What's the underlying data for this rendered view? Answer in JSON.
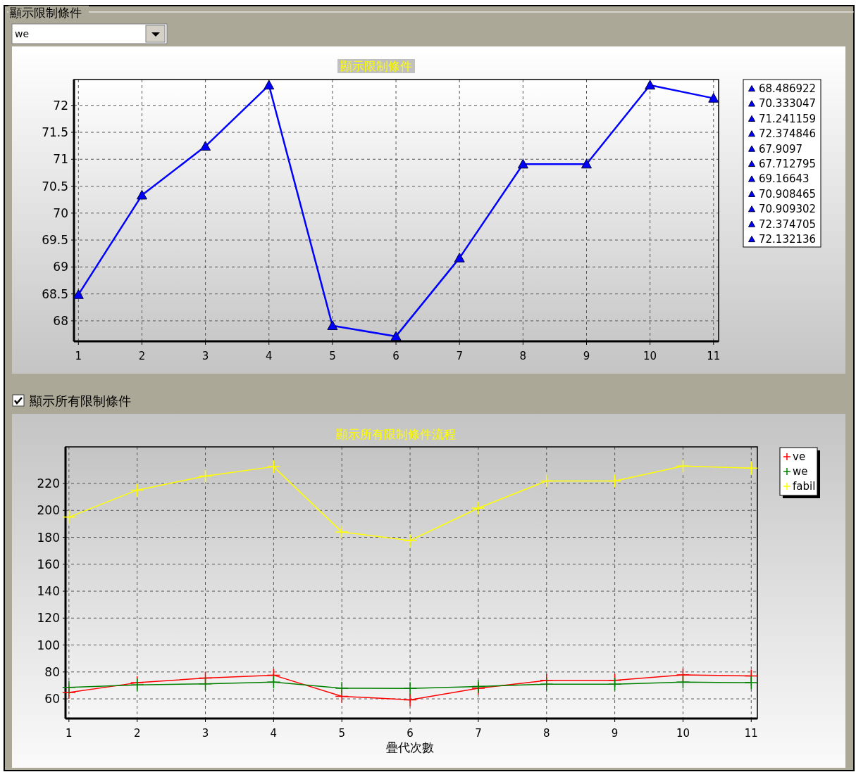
{
  "chart_data": [
    {
      "type": "other",
      "title": "顯示限制條件",
      "annotations": [
        "we"
      ]
    },
    {
      "type": "line",
      "title": "顯示限制條件",
      "x": [
        1,
        2,
        3,
        4,
        5,
        6,
        7,
        8,
        9,
        10,
        11
      ],
      "values": [
        68.486922,
        70.333047,
        71.241159,
        72.374846,
        67.9097,
        67.712795,
        69.16643,
        70.908465,
        70.909302,
        72.374705,
        72.132136
      ],
      "color": "#0000ff",
      "marker": "triangle",
      "grid": true,
      "xlim": [
        0.93,
        11.08
      ],
      "ylim": [
        67.62,
        72.48
      ],
      "xticks": [
        1,
        2,
        3,
        4,
        5,
        6,
        7,
        8,
        9,
        10,
        11
      ],
      "yticks": [
        68,
        68.5,
        69,
        69.5,
        70,
        70.5,
        71,
        71.5,
        72
      ],
      "annotations": [
        "68.486922",
        "70.333047",
        "71.241159",
        "72.374846",
        "67.9097",
        "67.712795",
        "69.16643",
        "70.908465",
        "70.909302",
        "72.374705",
        "72.132136"
      ]
    },
    {
      "type": "other",
      "title": "顯示所有限制條件"
    },
    {
      "type": "line",
      "title": "顯示所有限制條件流程",
      "xlabel": "疊代次數",
      "x": [
        1,
        2,
        3,
        4,
        5,
        6,
        7,
        8,
        9,
        10,
        11
      ],
      "series": [
        {
          "name": "ve",
          "color": "#ff0000",
          "values": [
            64.7,
            72.0,
            75.5,
            77.6,
            61.9,
            59.3,
            67.9,
            73.7,
            73.7,
            77.8,
            77.0
          ]
        },
        {
          "name": "we",
          "color": "#008000",
          "values": [
            68.5,
            70.3,
            71.2,
            72.4,
            67.9,
            67.7,
            69.2,
            70.9,
            70.9,
            72.4,
            72.1
          ]
        },
        {
          "name": "fabil",
          "color": "#ffff00",
          "values": [
            195.0,
            215.1,
            225.5,
            232.5,
            184.0,
            177.6,
            201.7,
            221.9,
            221.9,
            232.9,
            231.4
          ]
        }
      ],
      "marker": "cross",
      "grid": true,
      "legend": "top right",
      "xlim": [
        0.95,
        11.09
      ],
      "ylim": [
        45.4,
        247.2
      ],
      "xticks": [
        1,
        2,
        3,
        4,
        5,
        6,
        7,
        8,
        9,
        10,
        11
      ],
      "yticks": [
        60,
        80,
        100,
        120,
        140,
        160,
        180,
        200,
        220
      ]
    }
  ]
}
